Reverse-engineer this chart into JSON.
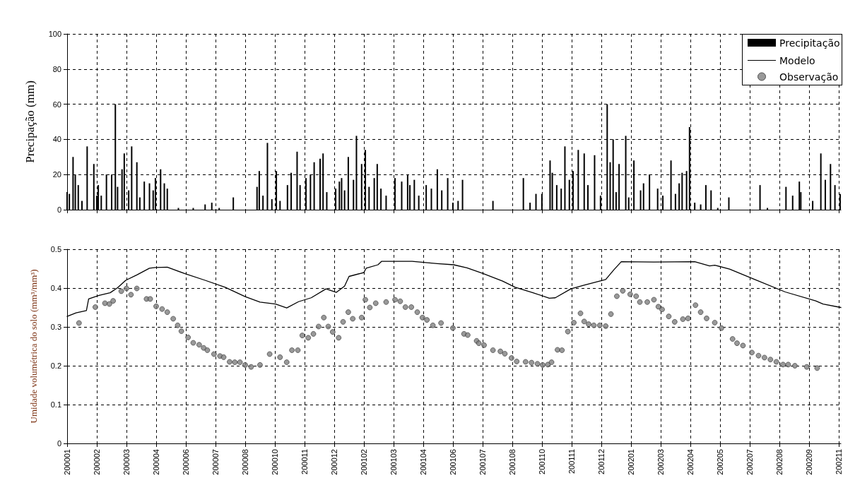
{
  "chart_data": [
    {
      "type": "bar",
      "ylabel": "Precipação (mm)",
      "xlim": [
        "2000-01-01",
        "2002-11-09"
      ],
      "ylim": [
        0,
        100
      ],
      "yticks": [
        0,
        20,
        40,
        60,
        80,
        100
      ],
      "xticks": [
        {
          "value": "2000-01-01",
          "label": null
        },
        {
          "value": "2000-02-10",
          "label": null
        },
        {
          "value": "2000-03-21",
          "label": null
        },
        {
          "value": "2000-04-30",
          "label": null
        },
        {
          "value": "2000-06-09",
          "label": null
        },
        {
          "value": "2000-07-19",
          "label": null
        },
        {
          "value": "2000-08-28",
          "label": null
        },
        {
          "value": "2000-10-07",
          "label": null
        },
        {
          "value": "2000-11-16",
          "label": null
        },
        {
          "value": "2000-12-26",
          "label": null
        },
        {
          "value": "2001-02-04",
          "label": null
        },
        {
          "value": "2001-03-16",
          "label": null
        },
        {
          "value": "2001-04-25",
          "label": null
        },
        {
          "value": "2001-06-04",
          "label": null
        },
        {
          "value": "2001-07-14",
          "label": null
        },
        {
          "value": "2001-08-23",
          "label": null
        },
        {
          "value": "2001-10-02",
          "label": null
        },
        {
          "value": "2001-11-11",
          "label": null
        },
        {
          "value": "2001-12-21",
          "label": null
        },
        {
          "value": "2002-01-30",
          "label": null
        },
        {
          "value": "2002-03-11",
          "label": null
        },
        {
          "value": "2002-04-20",
          "label": null
        },
        {
          "value": "2002-05-30",
          "label": null
        },
        {
          "value": "2002-07-09",
          "label": null
        },
        {
          "value": "2002-08-18",
          "label": null
        },
        {
          "value": "2002-09-27",
          "label": null
        },
        {
          "value": "2002-11-06",
          "label": null
        }
      ],
      "tick_labels": "y",
      "grid": true,
      "legend": "top right",
      "series": [
        {
          "name": "Precipitação",
          "color": "#000000",
          "x": [
            "2000-01-01",
            "2000-01-04",
            "2000-01-09",
            "2000-01-12",
            "2000-01-16",
            "2000-01-21",
            "2000-01-28",
            "2000-02-06",
            "2000-02-10",
            "2000-02-12",
            "2000-02-16",
            "2000-02-23",
            "2000-03-01",
            "2000-03-06",
            "2000-03-09",
            "2000-03-15",
            "2000-03-18",
            "2000-03-24",
            "2000-03-28",
            "2000-04-04",
            "2000-04-08",
            "2000-04-14",
            "2000-04-21",
            "2000-04-26",
            "2000-04-29",
            "2000-05-06",
            "2000-05-11",
            "2000-05-15",
            "2000-05-30",
            "2000-06-19",
            "2000-07-05",
            "2000-07-14",
            "2000-07-24",
            "2000-08-12",
            "2000-09-13",
            "2000-09-16",
            "2000-09-21",
            "2000-09-27",
            "2000-10-03",
            "2000-10-09",
            "2000-10-14",
            "2000-10-24",
            "2000-10-29",
            "2000-11-06",
            "2000-11-10",
            "2000-11-18",
            "2000-11-24",
            "2000-11-29",
            "2000-12-07",
            "2000-12-11",
            "2000-12-16",
            "2000-12-28",
            "2001-01-02",
            "2001-01-05",
            "2001-01-09",
            "2001-01-14",
            "2001-01-21",
            "2001-01-25",
            "2001-02-01",
            "2001-02-06",
            "2001-02-11",
            "2001-02-18",
            "2001-02-22",
            "2001-02-27",
            "2001-03-06",
            "2001-03-18",
            "2001-03-27",
            "2001-04-04",
            "2001-04-07",
            "2001-04-13",
            "2001-04-19",
            "2001-04-29",
            "2001-05-06",
            "2001-05-14",
            "2001-05-20",
            "2001-05-28",
            "2001-06-04",
            "2001-06-11",
            "2001-06-17",
            "2001-07-28",
            "2001-09-07",
            "2001-09-16",
            "2001-09-24",
            "2001-10-02",
            "2001-10-13",
            "2001-10-16",
            "2001-10-22",
            "2001-10-28",
            "2001-11-02",
            "2001-11-08",
            "2001-11-13",
            "2001-11-20",
            "2001-11-28",
            "2001-12-03",
            "2001-12-12",
            "2001-12-20",
            "2001-12-29",
            "2002-01-02",
            "2002-01-06",
            "2002-01-10",
            "2002-01-14",
            "2002-01-23",
            "2002-01-27",
            "2002-02-03",
            "2002-02-12",
            "2002-02-16",
            "2002-02-24",
            "2002-03-07",
            "2002-03-14",
            "2002-03-25",
            "2002-03-31",
            "2002-04-05",
            "2002-04-09",
            "2002-04-15",
            "2002-04-19",
            "2002-04-26",
            "2002-05-04",
            "2002-05-11",
            "2002-05-18",
            "2002-05-27",
            "2002-06-11",
            "2002-07-23",
            "2002-08-02",
            "2002-08-27",
            "2002-09-05",
            "2002-09-14",
            "2002-09-16",
            "2002-10-02",
            "2002-10-13",
            "2002-10-19",
            "2002-10-26",
            "2002-11-01",
            "2002-11-08"
          ],
          "values": [
            10,
            9,
            30,
            20,
            14,
            5,
            36,
            26,
            8,
            14,
            8,
            20,
            20,
            60,
            13,
            23,
            32,
            11,
            36,
            27,
            7,
            16,
            15,
            11,
            18,
            23,
            15,
            12,
            1,
            1,
            3,
            4,
            1,
            7,
            13,
            22,
            8,
            38,
            6,
            22,
            5,
            14,
            21,
            33,
            14,
            18,
            20,
            27,
            29,
            32,
            10,
            12,
            16,
            18,
            11,
            30,
            17,
            42,
            26,
            34,
            13,
            18,
            26,
            12,
            8,
            18,
            16,
            20,
            14,
            17,
            8,
            14,
            12,
            23,
            11,
            18,
            4,
            5,
            17,
            5,
            18,
            4,
            9,
            9,
            28,
            21,
            14,
            12,
            36,
            17,
            22,
            34,
            32,
            14,
            31,
            8,
            60,
            27,
            40,
            10,
            26,
            42,
            7,
            28,
            11,
            15,
            20,
            12,
            8,
            28,
            9,
            15,
            21,
            22,
            47,
            4,
            3,
            14,
            11,
            1,
            7,
            14,
            1,
            13,
            8,
            16,
            10,
            5,
            32,
            17,
            26,
            14,
            9
          ]
        }
      ]
    },
    {
      "type": "line",
      "ylabel": "Umidade volumétrica do solo (mm³/mm³)",
      "xlim": [
        "2000-01-01",
        "2002-11-09"
      ],
      "ylim": [
        0,
        0.5
      ],
      "yticks": [
        0,
        0.1,
        0.2,
        0.3,
        0.4,
        0.5
      ],
      "xticks": [
        {
          "value": "2000-01-01",
          "label": "200001"
        },
        {
          "value": "2000-02-10",
          "label": "200002"
        },
        {
          "value": "2000-03-21",
          "label": "200003"
        },
        {
          "value": "2000-04-30",
          "label": "200004"
        },
        {
          "value": "2000-06-09",
          "label": "200006"
        },
        {
          "value": "2000-07-19",
          "label": "200007"
        },
        {
          "value": "2000-08-28",
          "label": "200008"
        },
        {
          "value": "2000-10-07",
          "label": "200010"
        },
        {
          "value": "2000-11-16",
          "label": "200011"
        },
        {
          "value": "2000-12-26",
          "label": "200012"
        },
        {
          "value": "2001-02-04",
          "label": "200102"
        },
        {
          "value": "2001-03-16",
          "label": "200103"
        },
        {
          "value": "2001-04-25",
          "label": "200104"
        },
        {
          "value": "2001-06-04",
          "label": "200106"
        },
        {
          "value": "2001-07-14",
          "label": "200107"
        },
        {
          "value": "2001-08-23",
          "label": "200108"
        },
        {
          "value": "2001-10-02",
          "label": "200110"
        },
        {
          "value": "2001-11-11",
          "label": "200111"
        },
        {
          "value": "2001-12-21",
          "label": "200112"
        },
        {
          "value": "2002-01-30",
          "label": "200201"
        },
        {
          "value": "2002-03-11",
          "label": "200203"
        },
        {
          "value": "2002-04-20",
          "label": "200204"
        },
        {
          "value": "2002-05-30",
          "label": "200205"
        },
        {
          "value": "2002-07-09",
          "label": "200207"
        },
        {
          "value": "2002-08-18",
          "label": "200208"
        },
        {
          "value": "2002-09-27",
          "label": "200209"
        },
        {
          "value": "2002-11-06",
          "label": "200211"
        }
      ],
      "grid": true,
      "legend": "top right",
      "series": [
        {
          "name": "Modelo",
          "color": "#000000",
          "marker": "none",
          "line_style": "solid",
          "x": [
            "2000-01-01",
            "2000-01-13",
            "2000-01-27",
            "2000-01-30",
            "2000-02-13",
            "2000-02-28",
            "2000-03-09",
            "2000-03-20",
            "2000-04-04",
            "2000-04-21",
            "2000-04-29",
            "2000-05-15",
            "2000-06-08",
            "2000-07-05",
            "2000-08-01",
            "2000-08-28",
            "2000-09-17",
            "2000-10-08",
            "2000-10-23",
            "2000-11-08",
            "2000-11-25",
            "2000-12-15",
            "2000-12-29",
            "2001-01-09",
            "2001-01-15",
            "2001-02-04",
            "2001-02-07",
            "2001-02-23",
            "2001-02-28",
            "2001-04-10",
            "2001-05-14",
            "2001-06-05",
            "2001-06-23",
            "2001-07-14",
            "2001-08-10",
            "2001-08-27",
            "2001-09-20",
            "2001-10-12",
            "2001-10-20",
            "2001-11-10",
            "2001-11-27",
            "2001-12-27",
            "2002-01-07",
            "2002-01-17",
            "2002-03-02",
            "2002-04-26",
            "2002-05-16",
            "2002-05-23",
            "2002-06-12",
            "2002-07-16",
            "2002-08-26",
            "2002-10-06",
            "2002-10-16",
            "2002-11-09"
          ],
          "values": [
            0.327,
            0.336,
            0.342,
            0.372,
            0.381,
            0.388,
            0.401,
            0.42,
            0.434,
            0.451,
            0.453,
            0.454,
            0.437,
            0.42,
            0.402,
            0.378,
            0.364,
            0.359,
            0.349,
            0.365,
            0.375,
            0.398,
            0.389,
            0.405,
            0.43,
            0.44,
            0.451,
            0.46,
            0.469,
            0.469,
            0.463,
            0.46,
            0.452,
            0.438,
            0.418,
            0.402,
            0.388,
            0.374,
            0.375,
            0.398,
            0.407,
            0.422,
            0.447,
            0.468,
            0.467,
            0.468,
            0.457,
            0.459,
            0.449,
            0.422,
            0.39,
            0.367,
            0.359,
            0.35
          ]
        },
        {
          "name": "Observação",
          "type": "scatter",
          "color": "#808080",
          "marker": "circle",
          "x": [
            "2000-01-17",
            "2000-02-08",
            "2000-02-21",
            "2000-02-27",
            "2000-03-03",
            "2000-03-14",
            "2000-03-21",
            "2000-03-27",
            "2000-04-04",
            "2000-04-17",
            "2000-04-22",
            "2000-04-30",
            "2000-05-08",
            "2000-05-15",
            "2000-05-23",
            "2000-05-29",
            "2000-06-03",
            "2000-06-12",
            "2000-06-19",
            "2000-06-27",
            "2000-07-03",
            "2000-07-08",
            "2000-07-17",
            "2000-07-25",
            "2000-07-30",
            "2000-08-07",
            "2000-08-14",
            "2000-08-21",
            "2000-08-28",
            "2000-09-05",
            "2000-09-17",
            "2000-09-30",
            "2000-10-14",
            "2000-10-23",
            "2000-10-30",
            "2000-11-07",
            "2000-11-13",
            "2000-11-21",
            "2000-11-28",
            "2000-12-05",
            "2000-12-12",
            "2000-12-18",
            "2000-12-24",
            "2001-01-01",
            "2001-01-07",
            "2001-01-14",
            "2001-01-20",
            "2001-02-01",
            "2001-02-06",
            "2001-02-12",
            "2001-02-20",
            "2001-03-06",
            "2001-03-18",
            "2001-03-25",
            "2001-04-01",
            "2001-04-09",
            "2001-04-17",
            "2001-04-24",
            "2001-04-30",
            "2001-05-08",
            "2001-05-19",
            "2001-06-04",
            "2001-06-19",
            "2001-06-24",
            "2001-07-06",
            "2001-07-09",
            "2001-07-16",
            "2001-07-28",
            "2001-08-07",
            "2001-08-13",
            "2001-08-22",
            "2001-08-29",
            "2001-09-10",
            "2001-09-18",
            "2001-09-26",
            "2001-10-03",
            "2001-10-10",
            "2001-10-15",
            "2001-10-23",
            "2001-10-29",
            "2001-11-06",
            "2001-11-14",
            "2001-11-23",
            "2001-11-28",
            "2001-12-04",
            "2001-12-11",
            "2001-12-19",
            "2001-12-27",
            "2002-01-03",
            "2002-01-11",
            "2002-01-19",
            "2002-01-29",
            "2002-02-06",
            "2002-02-11",
            "2002-02-21",
            "2002-03-02",
            "2002-03-08",
            "2002-03-13",
            "2002-03-22",
            "2002-03-30",
            "2002-04-10",
            "2002-04-17",
            "2002-04-27",
            "2002-05-04",
            "2002-05-12",
            "2002-05-23",
            "2002-06-01",
            "2002-06-16",
            "2002-06-22",
            "2002-06-30",
            "2002-07-12",
            "2002-07-21",
            "2002-07-29",
            "2002-08-06",
            "2002-08-14",
            "2002-08-23",
            "2002-08-30",
            "2002-09-08",
            "2002-09-24",
            "2002-10-08"
          ],
          "values": [
            0.31,
            0.351,
            0.361,
            0.359,
            0.367,
            0.392,
            0.399,
            0.383,
            0.399,
            0.372,
            0.372,
            0.353,
            0.346,
            0.338,
            0.321,
            0.304,
            0.289,
            0.273,
            0.259,
            0.254,
            0.246,
            0.24,
            0.23,
            0.225,
            0.222,
            0.21,
            0.209,
            0.209,
            0.202,
            0.197,
            0.202,
            0.23,
            0.222,
            0.209,
            0.24,
            0.24,
            0.278,
            0.272,
            0.282,
            0.301,
            0.324,
            0.301,
            0.287,
            0.272,
            0.313,
            0.338,
            0.321,
            0.324,
            0.37,
            0.35,
            0.361,
            0.364,
            0.37,
            0.366,
            0.351,
            0.351,
            0.338,
            0.324,
            0.318,
            0.304,
            0.31,
            0.297,
            0.282,
            0.279,
            0.264,
            0.258,
            0.253,
            0.24,
            0.237,
            0.231,
            0.22,
            0.211,
            0.21,
            0.208,
            0.205,
            0.202,
            0.203,
            0.209,
            0.241,
            0.24,
            0.288,
            0.311,
            0.335,
            0.314,
            0.307,
            0.304,
            0.304,
            0.302,
            0.333,
            0.379,
            0.393,
            0.384,
            0.379,
            0.364,
            0.364,
            0.37,
            0.352,
            0.345,
            0.327,
            0.313,
            0.32,
            0.322,
            0.356,
            0.338,
            0.322,
            0.311,
            0.297,
            0.269,
            0.258,
            0.252,
            0.234,
            0.226,
            0.221,
            0.216,
            0.21,
            0.203,
            0.203,
            0.2,
            0.197,
            0.194
          ]
        }
      ]
    }
  ]
}
